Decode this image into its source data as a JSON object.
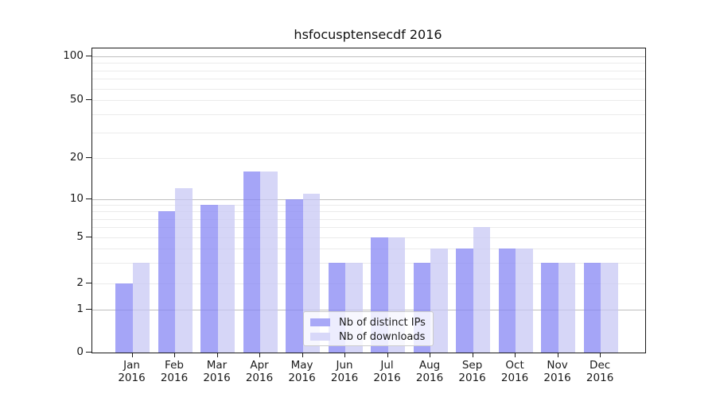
{
  "chart_data": {
    "type": "bar",
    "title": "hsfocusptensecdf 2016",
    "categories": [
      "Jan",
      "Feb",
      "Mar",
      "Apr",
      "May",
      "Jun",
      "Jul",
      "Aug",
      "Sep",
      "Oct",
      "Nov",
      "Dec"
    ],
    "year_label": "2016",
    "series": [
      {
        "name": "Nb of distinct IPs",
        "color": "#a8a8f7",
        "fill": "rgba(134,134,244,0.74)",
        "values": [
          2,
          8,
          9,
          16,
          10,
          3,
          5,
          3,
          4,
          4,
          3,
          3
        ]
      },
      {
        "name": "Nb of downloads",
        "color": "#d8d8f9",
        "fill": "rgba(198,198,244,0.72)",
        "values": [
          3,
          12,
          9,
          16,
          11,
          3,
          5,
          4,
          6,
          4,
          3,
          3
        ]
      }
    ],
    "yscale": "symlog",
    "yticks": [
      100,
      50,
      20,
      10,
      5,
      2,
      1,
      0
    ],
    "ylim": [
      0,
      115
    ],
    "grid": "horizontal, major decades dark + log minors faint",
    "legend_position": "lower center"
  }
}
